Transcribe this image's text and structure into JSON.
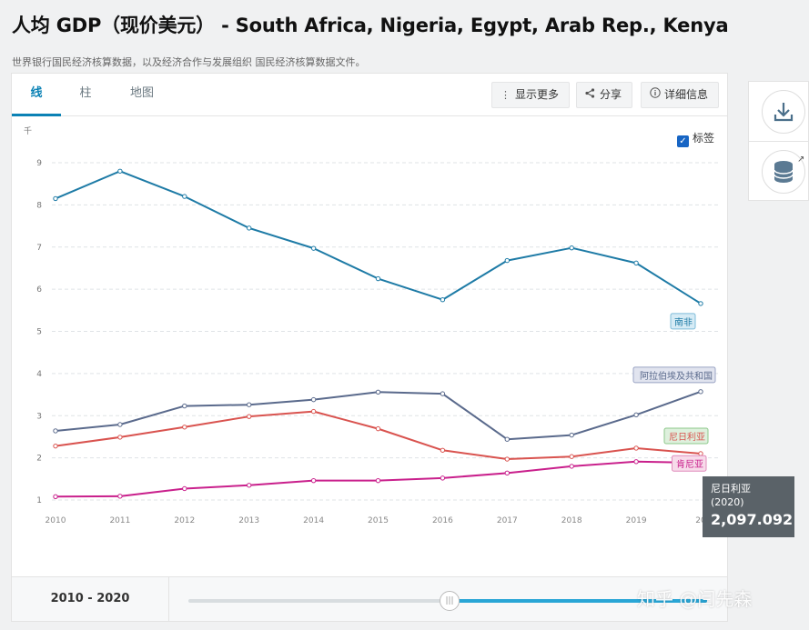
{
  "page": {
    "title": "人均 GDP（现价美元） - South Africa, Nigeria, Egypt, Arab Rep., Kenya",
    "subtitle": "世界银行国民经济核算数据，以及经济合作与发展组织 国民经济核算数据文件。"
  },
  "tabs": [
    {
      "label": "线"
    },
    {
      "label": "柱"
    },
    {
      "label": "地图"
    }
  ],
  "toolbar": {
    "more_label": "显示更多",
    "share_label": "分享",
    "details_label": "详细信息"
  },
  "legend_toggle": {
    "label": "标签",
    "checked": true
  },
  "footer": {
    "range_label": "2010 - 2020"
  },
  "tooltip": {
    "country": "尼日利亚",
    "year": "(2020)",
    "value": "2,097.092"
  },
  "watermark": "知乎 @闫先森",
  "colors": {
    "accent": "#0b82b5",
    "south_africa": "#1e7ba6",
    "egypt": "#5a6a8c",
    "nigeria": "#d9534f",
    "kenya": "#c9208c"
  },
  "chart_data": {
    "type": "line",
    "ylabel": "千",
    "ylim": [
      1,
      9
    ],
    "yticks": [
      "1",
      "2",
      "3",
      "4",
      "5",
      "6",
      "7",
      "8",
      "9"
    ],
    "x": [
      "2010",
      "2011",
      "2012",
      "2013",
      "2014",
      "2015",
      "2016",
      "2017",
      "2018",
      "2019",
      "2020"
    ],
    "x_tick_labels": [
      "2010",
      "2011",
      "2012",
      "2013",
      "2014",
      "2015",
      "2016",
      "2017",
      "2018",
      "2019",
      "20"
    ],
    "grid": true,
    "series": [
      {
        "name": "南非",
        "color": "#1e7ba6",
        "values": [
          8.15,
          8.8,
          8.2,
          7.45,
          6.97,
          6.25,
          5.75,
          6.68,
          6.98,
          6.62,
          5.66
        ]
      },
      {
        "name": "阿拉伯埃及共和国",
        "color": "#5a6a8c",
        "values": [
          2.64,
          2.79,
          3.23,
          3.26,
          3.38,
          3.56,
          3.52,
          2.44,
          2.54,
          3.02,
          3.57
        ]
      },
      {
        "name": "尼日利亚",
        "color": "#d9534f",
        "values": [
          2.28,
          2.49,
          2.73,
          2.98,
          3.1,
          2.69,
          2.18,
          1.97,
          2.03,
          2.23,
          2.1
        ]
      },
      {
        "name": "肯尼亚",
        "color": "#c9208c",
        "values": [
          1.08,
          1.09,
          1.27,
          1.35,
          1.46,
          1.46,
          1.52,
          1.64,
          1.8,
          1.91,
          1.88
        ]
      }
    ]
  }
}
